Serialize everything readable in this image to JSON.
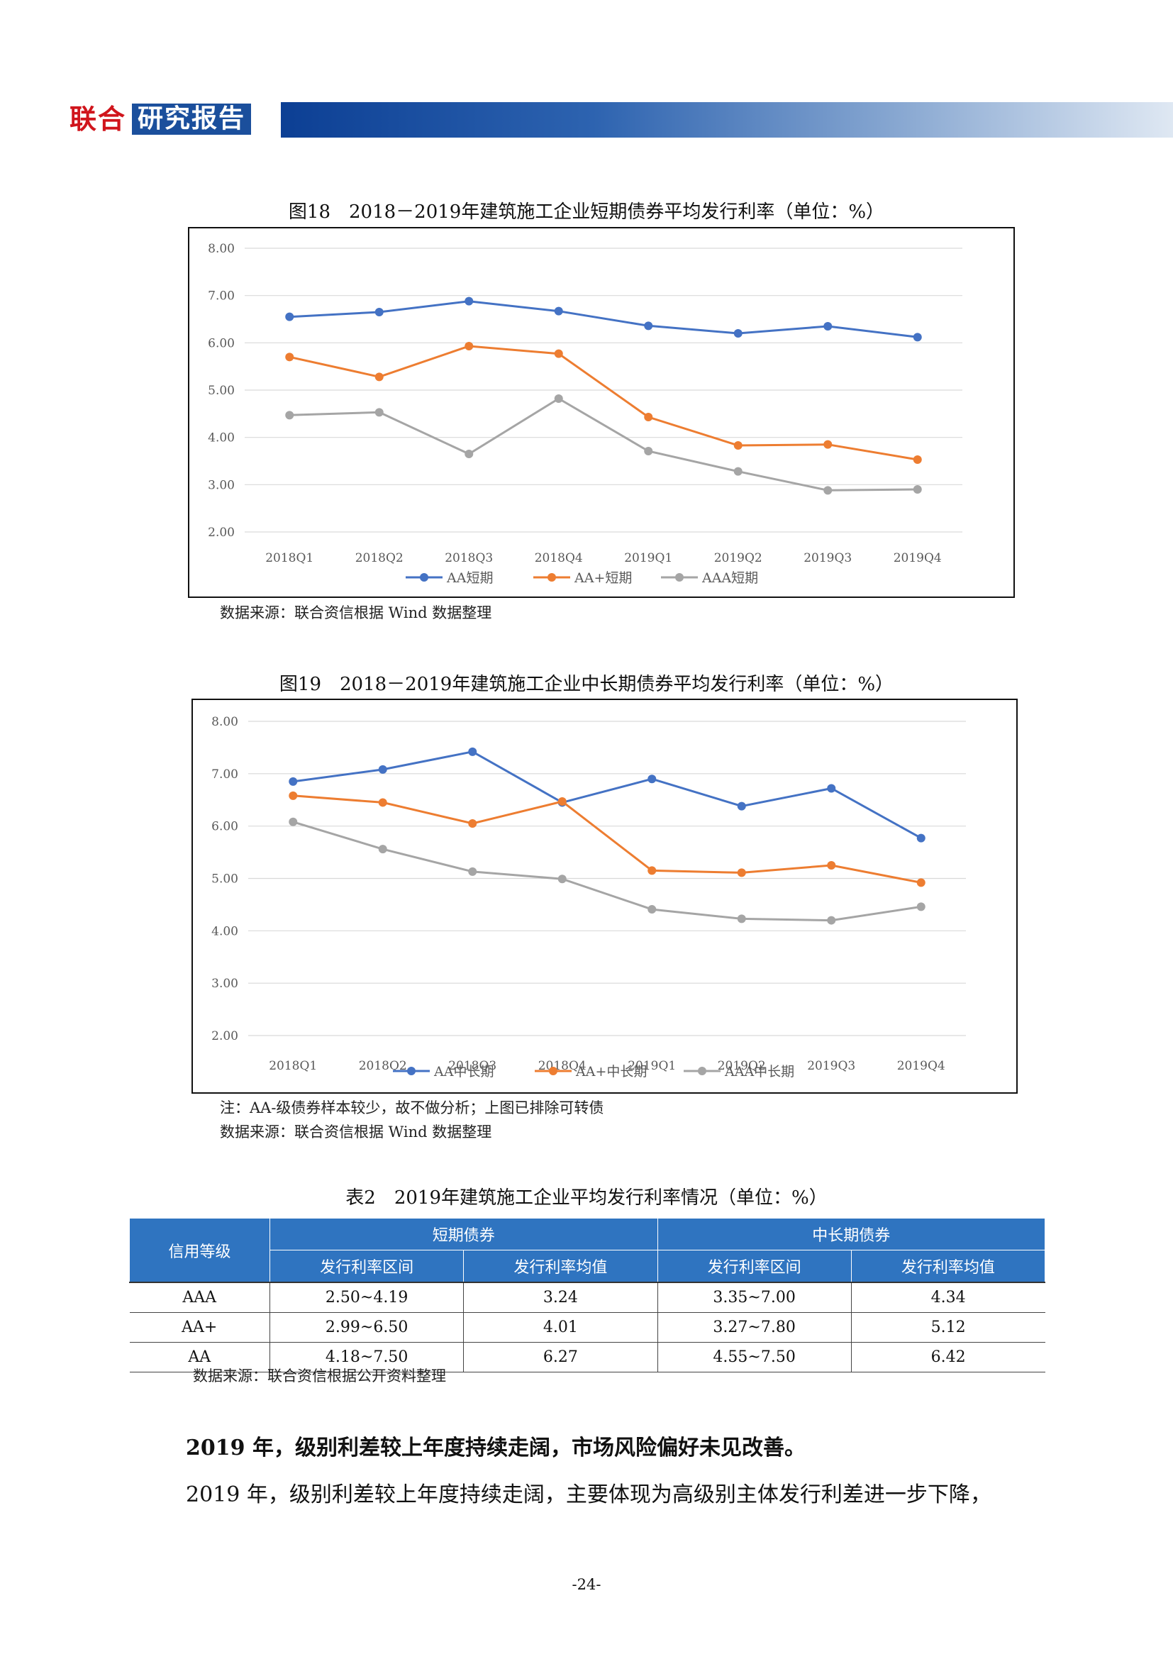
{
  "header": {
    "brand_red": "联合",
    "brand_blue": "研究报告"
  },
  "figure18": {
    "caption": "图18　2018－2019年建筑施工企业短期债券平均发行利率（单位：%）",
    "source": "数据来源：联合资信根据 Wind 数据整理",
    "chart_data": {
      "type": "line",
      "categories": [
        "2018Q1",
        "2018Q2",
        "2018Q3",
        "2018Q4",
        "2019Q1",
        "2019Q2",
        "2019Q3",
        "2019Q4"
      ],
      "ylim": [
        2.0,
        8.0
      ],
      "yticks": [
        "2.00",
        "3.00",
        "4.00",
        "5.00",
        "6.00",
        "7.00",
        "8.00"
      ],
      "grid": true,
      "legend_position": "bottom",
      "series": [
        {
          "name": "AA短期",
          "color": "#4472c4",
          "values": [
            6.55,
            6.65,
            6.88,
            6.67,
            6.36,
            6.2,
            6.35,
            6.12
          ]
        },
        {
          "name": "AA+短期",
          "color": "#ed7d31",
          "values": [
            5.7,
            5.28,
            5.93,
            5.77,
            4.43,
            3.83,
            3.85,
            3.53
          ]
        },
        {
          "name": "AAA短期",
          "color": "#a5a5a5",
          "values": [
            4.47,
            4.53,
            3.65,
            4.82,
            3.71,
            3.28,
            2.88,
            2.9
          ]
        }
      ]
    }
  },
  "figure19": {
    "caption": "图19　2018－2019年建筑施工企业中长期债券平均发行利率（单位：%）",
    "note": "注：AA-级债券样本较少，故不做分析；上图已排除可转债",
    "source": "数据来源：联合资信根据 Wind 数据整理",
    "chart_data": {
      "type": "line",
      "categories": [
        "2018Q1",
        "2018Q2",
        "2018Q3",
        "2018Q4",
        "2019Q1",
        "2019Q2",
        "2019Q3",
        "2019Q4"
      ],
      "ylim": [
        2.0,
        8.0
      ],
      "yticks": [
        "2.00",
        "3.00",
        "4.00",
        "5.00",
        "6.00",
        "7.00",
        "8.00"
      ],
      "grid": true,
      "legend_position": "bottom",
      "series": [
        {
          "name": "AA中长期",
          "color": "#4472c4",
          "values": [
            6.85,
            7.08,
            7.42,
            6.45,
            6.9,
            6.38,
            6.72,
            5.77
          ]
        },
        {
          "name": "AA+中长期",
          "color": "#ed7d31",
          "values": [
            6.58,
            6.45,
            6.05,
            6.47,
            5.15,
            5.11,
            5.25,
            4.92
          ]
        },
        {
          "name": "AAA中长期",
          "color": "#a5a5a5",
          "values": [
            6.08,
            5.56,
            5.13,
            4.99,
            4.41,
            4.23,
            4.2,
            4.46
          ]
        }
      ]
    }
  },
  "table2": {
    "caption": "表2　2019年建筑施工企业平均发行利率情况（单位：%）",
    "header_rating": "信用等级",
    "group_short": "短期债券",
    "group_long": "中长期债券",
    "sub_range": "发行利率区间",
    "sub_mean": "发行利率均值",
    "rows": [
      {
        "rating": "AAA",
        "short_range": "2.50~4.19",
        "short_mean": "3.24",
        "long_range": "3.35~7.00",
        "long_mean": "4.34"
      },
      {
        "rating": "AA+",
        "short_range": "2.99~6.50",
        "short_mean": "4.01",
        "long_range": "3.27~7.80",
        "long_mean": "5.12"
      },
      {
        "rating": "AA",
        "short_range": "4.18~7.50",
        "short_mean": "6.27",
        "long_range": "4.55~7.50",
        "long_mean": "6.42"
      }
    ],
    "source": "数据来源：联合资信根据公开资料整理"
  },
  "body": {
    "heading": "2019 年，级别利差较上年度持续走阔，市场风险偏好未见改善。",
    "paragraph": "2019 年，级别利差较上年度持续走阔，主要体现为高级别主体发行利差进一步下降，"
  },
  "page_number": "-24-"
}
